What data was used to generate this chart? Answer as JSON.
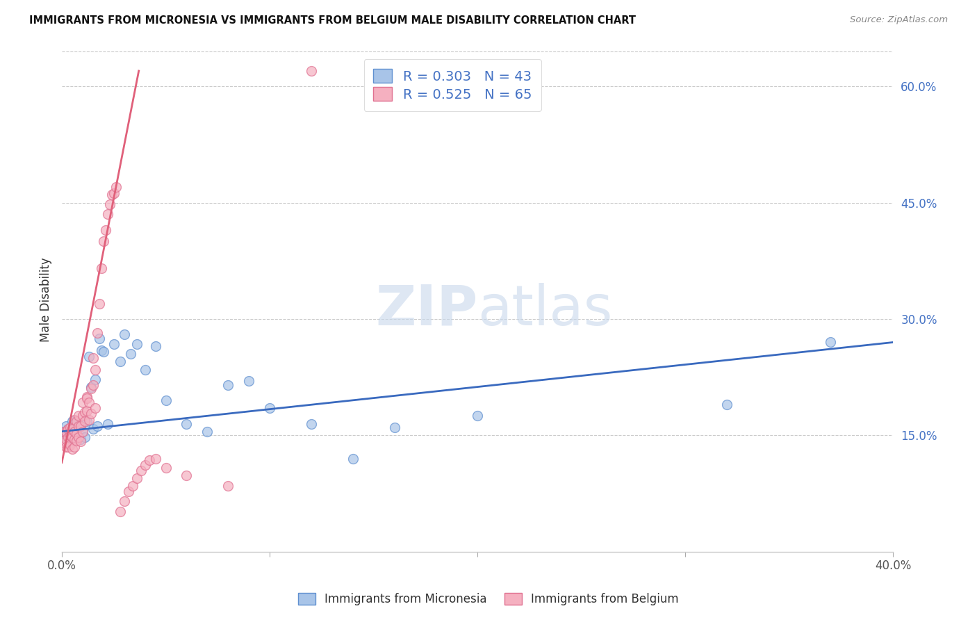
{
  "title": "IMMIGRANTS FROM MICRONESIA VS IMMIGRANTS FROM BELGIUM MALE DISABILITY CORRELATION CHART",
  "source": "Source: ZipAtlas.com",
  "ylabel": "Male Disability",
  "x_min": 0.0,
  "x_max": 0.4,
  "y_min": 0.0,
  "y_max": 0.65,
  "x_ticks": [
    0.0,
    0.1,
    0.2,
    0.3,
    0.4
  ],
  "x_tick_labels": [
    "0.0%",
    "",
    "",
    "",
    "40.0%"
  ],
  "y_ticks_right": [
    0.15,
    0.3,
    0.45,
    0.6
  ],
  "y_tick_labels_right": [
    "15.0%",
    "30.0%",
    "45.0%",
    "60.0%"
  ],
  "micronesia_color": "#a8c4e8",
  "belgium_color": "#f5b0c0",
  "micronesia_edge_color": "#6090d0",
  "belgium_edge_color": "#e07090",
  "micronesia_line_color": "#3a6abf",
  "belgium_line_color": "#e0607a",
  "legend_text_color": "#4472c4",
  "watermark": "ZIPatlas",
  "mic_trend_x0": 0.0,
  "mic_trend_y0": 0.155,
  "mic_trend_x1": 0.4,
  "mic_trend_y1": 0.27,
  "bel_trend_x0": 0.0,
  "bel_trend_y0": 0.115,
  "bel_trend_x1": 0.037,
  "bel_trend_y1": 0.62,
  "micronesia_x": [
    0.001,
    0.002,
    0.002,
    0.003,
    0.003,
    0.004,
    0.005,
    0.005,
    0.006,
    0.007,
    0.008,
    0.009,
    0.01,
    0.011,
    0.012,
    0.013,
    0.014,
    0.015,
    0.016,
    0.017,
    0.018,
    0.019,
    0.02,
    0.022,
    0.025,
    0.028,
    0.03,
    0.033,
    0.036,
    0.04,
    0.045,
    0.05,
    0.06,
    0.07,
    0.08,
    0.09,
    0.1,
    0.12,
    0.14,
    0.16,
    0.2,
    0.32,
    0.37
  ],
  "micronesia_y": [
    0.155,
    0.148,
    0.162,
    0.158,
    0.145,
    0.14,
    0.152,
    0.168,
    0.165,
    0.15,
    0.16,
    0.145,
    0.155,
    0.148,
    0.168,
    0.252,
    0.212,
    0.158,
    0.222,
    0.162,
    0.275,
    0.26,
    0.258,
    0.165,
    0.268,
    0.245,
    0.28,
    0.255,
    0.268,
    0.235,
    0.265,
    0.195,
    0.165,
    0.155,
    0.215,
    0.22,
    0.185,
    0.165,
    0.12,
    0.16,
    0.175,
    0.19,
    0.27
  ],
  "belgium_x": [
    0.001,
    0.001,
    0.002,
    0.002,
    0.002,
    0.003,
    0.003,
    0.003,
    0.004,
    0.004,
    0.004,
    0.005,
    0.005,
    0.005,
    0.006,
    0.006,
    0.006,
    0.006,
    0.007,
    0.007,
    0.007,
    0.008,
    0.008,
    0.008,
    0.009,
    0.009,
    0.01,
    0.01,
    0.01,
    0.011,
    0.011,
    0.012,
    0.012,
    0.012,
    0.013,
    0.013,
    0.014,
    0.014,
    0.015,
    0.015,
    0.016,
    0.016,
    0.017,
    0.018,
    0.019,
    0.02,
    0.021,
    0.022,
    0.023,
    0.024,
    0.025,
    0.026,
    0.028,
    0.03,
    0.032,
    0.034,
    0.036,
    0.038,
    0.04,
    0.042,
    0.045,
    0.05,
    0.06,
    0.08,
    0.12
  ],
  "belgium_y": [
    0.155,
    0.14,
    0.145,
    0.155,
    0.135,
    0.148,
    0.158,
    0.135,
    0.15,
    0.16,
    0.138,
    0.148,
    0.158,
    0.132,
    0.155,
    0.145,
    0.17,
    0.135,
    0.152,
    0.168,
    0.143,
    0.148,
    0.162,
    0.175,
    0.162,
    0.142,
    0.175,
    0.192,
    0.155,
    0.18,
    0.168,
    0.2,
    0.198,
    0.182,
    0.192,
    0.17,
    0.21,
    0.178,
    0.215,
    0.25,
    0.235,
    0.185,
    0.282,
    0.32,
    0.365,
    0.4,
    0.415,
    0.435,
    0.448,
    0.46,
    0.462,
    0.47,
    0.052,
    0.065,
    0.078,
    0.085,
    0.095,
    0.105,
    0.112,
    0.118,
    0.12,
    0.108,
    0.098,
    0.085,
    0.62
  ]
}
